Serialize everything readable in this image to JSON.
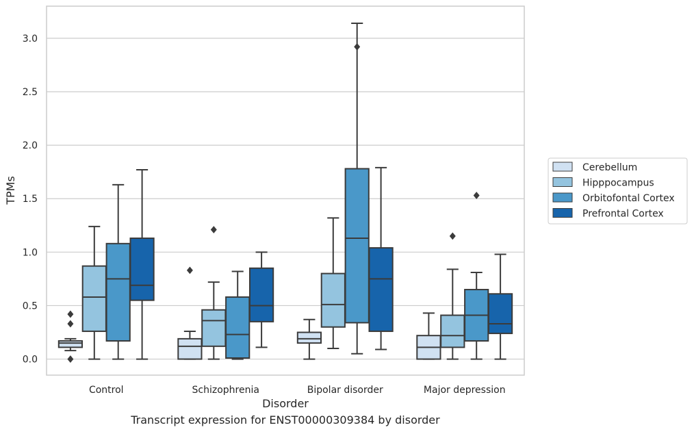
{
  "chart_data": {
    "type": "box",
    "xlabel": "Disorder",
    "ylabel": "TPMs",
    "caption": "Transcript expression for ENST00000309384 by disorder",
    "categories": [
      "Control",
      "Schizophrenia",
      "Bipolar disorder",
      "Major depression"
    ],
    "ylim": [
      -0.15,
      3.3
    ],
    "yticks": [
      0.0,
      0.5,
      1.0,
      1.5,
      2.0,
      2.5,
      3.0
    ],
    "grid": "horizontal",
    "legend_position": "right",
    "series": [
      {
        "name": "Cerebellum",
        "color": "#d0e1f2",
        "boxes": [
          {
            "whisker_low": 0.08,
            "q1": 0.11,
            "median": 0.15,
            "q3": 0.17,
            "whisker_high": 0.19,
            "outliers": [
              0.42,
              0.33,
              0.0
            ]
          },
          {
            "whisker_low": 0.0,
            "q1": 0.0,
            "median": 0.12,
            "q3": 0.19,
            "whisker_high": 0.26,
            "outliers": [
              0.83
            ]
          },
          {
            "whisker_low": 0.0,
            "q1": 0.15,
            "median": 0.19,
            "q3": 0.25,
            "whisker_high": 0.37,
            "outliers": []
          },
          {
            "whisker_low": 0.0,
            "q1": 0.0,
            "median": 0.11,
            "q3": 0.22,
            "whisker_high": 0.43,
            "outliers": []
          }
        ]
      },
      {
        "name": "Hipppocampus",
        "color": "#94c4df",
        "boxes": [
          {
            "whisker_low": 0.0,
            "q1": 0.26,
            "median": 0.58,
            "q3": 0.87,
            "whisker_high": 1.24,
            "outliers": []
          },
          {
            "whisker_low": 0.0,
            "q1": 0.12,
            "median": 0.36,
            "q3": 0.46,
            "whisker_high": 0.72,
            "outliers": [
              1.21
            ]
          },
          {
            "whisker_low": 0.1,
            "q1": 0.3,
            "median": 0.51,
            "q3": 0.8,
            "whisker_high": 1.32,
            "outliers": []
          },
          {
            "whisker_low": 0.0,
            "q1": 0.11,
            "median": 0.22,
            "q3": 0.41,
            "whisker_high": 0.84,
            "outliers": [
              1.15
            ]
          }
        ]
      },
      {
        "name": "Orbitofontal Cortex",
        "color": "#4a98c9",
        "boxes": [
          {
            "whisker_low": 0.0,
            "q1": 0.17,
            "median": 0.75,
            "q3": 1.08,
            "whisker_high": 1.63,
            "outliers": []
          },
          {
            "whisker_low": 0.0,
            "q1": 0.01,
            "median": 0.23,
            "q3": 0.58,
            "whisker_high": 0.82,
            "outliers": []
          },
          {
            "whisker_low": 0.05,
            "q1": 0.34,
            "median": 1.13,
            "q3": 1.78,
            "whisker_high": 3.14,
            "outliers": [
              2.92
            ]
          },
          {
            "whisker_low": 0.0,
            "q1": 0.17,
            "median": 0.41,
            "q3": 0.65,
            "whisker_high": 0.81,
            "outliers": [
              1.53
            ]
          }
        ]
      },
      {
        "name": "Prefrontal Cortex",
        "color": "#1764ab",
        "boxes": [
          {
            "whisker_low": 0.0,
            "q1": 0.55,
            "median": 0.69,
            "q3": 1.13,
            "whisker_high": 1.77,
            "outliers": []
          },
          {
            "whisker_low": 0.11,
            "q1": 0.35,
            "median": 0.5,
            "q3": 0.85,
            "whisker_high": 1.0,
            "outliers": []
          },
          {
            "whisker_low": 0.09,
            "q1": 0.26,
            "median": 0.75,
            "q3": 1.04,
            "whisker_high": 1.79,
            "outliers": []
          },
          {
            "whisker_low": 0.0,
            "q1": 0.24,
            "median": 0.33,
            "q3": 0.61,
            "whisker_high": 0.98,
            "outliers": []
          }
        ]
      }
    ]
  }
}
